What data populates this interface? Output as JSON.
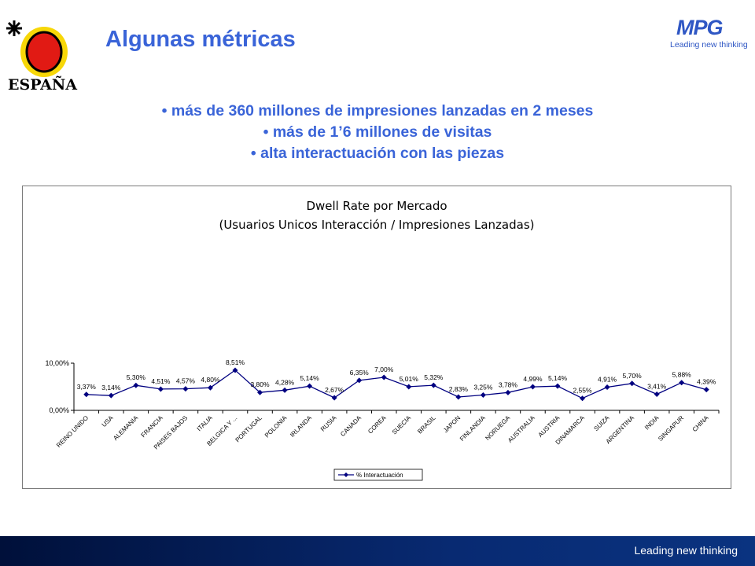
{
  "header": {
    "title": "Algunas métricas",
    "logo_left_text": "ESPAÑA",
    "logo_right_word": "MPG",
    "logo_right_tagline": "Leading new thinking"
  },
  "bullets": [
    "• más de 360 millones de impresiones lanzadas en 2 meses",
    "• más de 1’6 millones de visitas",
    "• alta interactuación con las piezas"
  ],
  "footer": {
    "tagline": "Leading new thinking"
  },
  "colors": {
    "accent": "#3a64d8",
    "series": "#000080",
    "footer": "#082a72"
  },
  "chart_data": {
    "type": "line",
    "title": "Dwell Rate por Mercado",
    "subtitle": "(Usuarios Unicos Interacción / Impresiones Lanzadas)",
    "legend": "top-center-below",
    "grid": false,
    "ylim": [
      0,
      10
    ],
    "y_ticks": [
      "0,00%",
      "10,00%"
    ],
    "categories": [
      "REINO UNIDO",
      "USA",
      "ALEMANIA",
      "FRANCIA",
      "PAISES BAJOS",
      "ITALIA",
      "BELGICA Y ...",
      "PORTUGAL",
      "POLONIA",
      "IRLANDA",
      "RUSIA",
      "CANADA",
      "COREA",
      "SUECIA",
      "BRASIL",
      "JAPON",
      "FINLANDIA",
      "NORUEGA",
      "AUSTRALIA",
      "AUSTRIA",
      "DINAMARCA",
      "SUIZA",
      "ARGENTINA",
      "INDIA",
      "SINGAPUR",
      "CHINA"
    ],
    "series": [
      {
        "name": "% Interactuación",
        "values": [
          3.37,
          3.14,
          5.3,
          4.51,
          4.57,
          4.8,
          8.51,
          3.8,
          4.28,
          5.14,
          2.67,
          6.35,
          7.0,
          5.01,
          5.32,
          2.83,
          3.25,
          3.78,
          4.99,
          5.14,
          2.55,
          4.91,
          5.7,
          3.41,
          5.88,
          4.39
        ],
        "labels": [
          "3,37%",
          "3,14%",
          "5,30%",
          "4,51%",
          "4,57%",
          "4,80%",
          "8,51%",
          "3,80%",
          "4,28%",
          "5,14%",
          "2,67%",
          "6,35%",
          "7,00%",
          "5,01%",
          "5,32%",
          "2,83%",
          "3,25%",
          "3,78%",
          "4,99%",
          "5,14%",
          "2,55%",
          "4,91%",
          "5,70%",
          "3,41%",
          "5,88%",
          "4,39%"
        ]
      }
    ]
  }
}
